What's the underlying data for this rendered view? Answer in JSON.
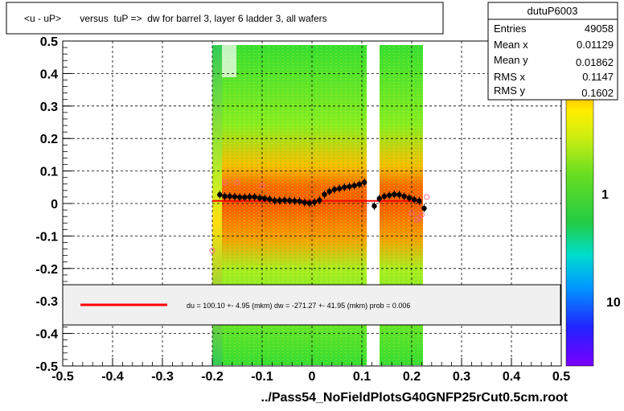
{
  "title": "<u - uP>       versus  tuP =>  dw for barrel 3, layer 6 ladder 3, all wafers",
  "footer": "../Pass54_NoFieldPlotsG40GNFP25rCut0.5cm.root",
  "stats": {
    "name": "dutuP6003",
    "rows": [
      {
        "label": "Entries",
        "value": "49058"
      },
      {
        "label": "Mean x",
        "value": "0.01129"
      },
      {
        "label": "Mean y",
        "value": "0.01862"
      },
      {
        "label": "RMS x",
        "value": "0.1147"
      },
      {
        "label": "RMS y",
        "value": "0.1602"
      }
    ]
  },
  "fit_legend": "du =  100.10 +-  4.95 (mkm) dw = -271.27 +- 41.95 (mkm) prob = 0.006",
  "colors": {
    "fit_line": "#ff0000",
    "profile_points": "#000000",
    "outlier_points": "#ff6688"
  },
  "chart_data": {
    "type": "heatmap",
    "title": "<u - uP>       versus  tuP =>  dw for barrel 3, layer 6 ladder 3, all wafers",
    "xlabel": "",
    "ylabel": "",
    "xlim": [
      -0.5,
      0.5
    ],
    "ylim": [
      -0.5,
      0.5
    ],
    "x_ticks": [
      "-0.5",
      "-0.4",
      "-0.3",
      "-0.2",
      "-0.1",
      "0",
      "0.1",
      "0.2",
      "0.3",
      "0.4",
      "0.5"
    ],
    "y_ticks": [
      "-0.5",
      "-0.4",
      "-0.3",
      "-0.2",
      "-0.1",
      "0",
      "0.1",
      "0.2",
      "0.3",
      "0.4",
      "0.5"
    ],
    "colorbar_labels": [
      "10",
      "1",
      "10"
    ],
    "grid": true,
    "occupied_x_bands": [
      [
        -0.19,
        -0.16
      ],
      [
        -0.16,
        0.11
      ],
      [
        0.135,
        0.215
      ]
    ],
    "profile": {
      "x": [
        -0.185,
        -0.175,
        -0.165,
        -0.155,
        -0.145,
        -0.135,
        -0.125,
        -0.115,
        -0.105,
        -0.095,
        -0.085,
        -0.075,
        -0.065,
        -0.055,
        -0.045,
        -0.035,
        -0.025,
        -0.015,
        -0.005,
        0.005,
        0.015,
        0.025,
        0.035,
        0.045,
        0.055,
        0.065,
        0.075,
        0.085,
        0.095,
        0.105,
        0.125,
        0.135,
        0.145,
        0.155,
        0.165,
        0.175,
        0.185,
        0.195,
        0.205,
        0.215,
        0.225
      ],
      "y": [
        0.027,
        0.022,
        0.022,
        0.021,
        0.019,
        0.019,
        0.02,
        0.02,
        0.017,
        0.015,
        0.013,
        0.009,
        0.009,
        0.01,
        0.009,
        0.008,
        0.007,
        0.003,
        0.001,
        0.004,
        0.01,
        0.028,
        0.037,
        0.043,
        0.046,
        0.05,
        0.052,
        0.055,
        0.059,
        0.065,
        -0.008,
        0.015,
        0.022,
        0.025,
        0.028,
        0.027,
        0.022,
        0.017,
        0.012,
        0.008,
        -0.015
      ]
    },
    "outliers": {
      "x": [
        -0.2,
        -0.175,
        -0.15,
        -0.1,
        0.2,
        0.21,
        0.215,
        0.22,
        0.23
      ],
      "y": [
        -0.145,
        0.065,
        0.065,
        0.055,
        -0.03,
        -0.05,
        -0.045,
        -0.035,
        0.02
      ]
    },
    "fit_line": {
      "x": [
        -0.2,
        0.22
      ],
      "y": [
        0.008,
        0.008
      ]
    }
  }
}
